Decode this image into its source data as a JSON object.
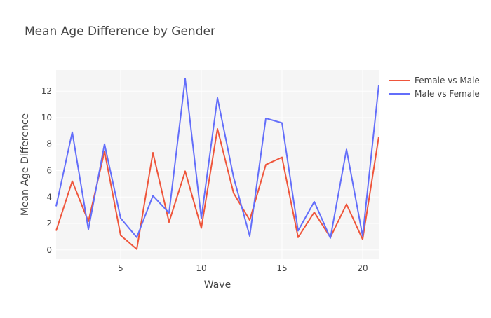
{
  "chart_data": {
    "type": "line",
    "title": "Mean Age Difference by Gender",
    "xlabel": "Wave",
    "ylabel": "Mean Age Difference",
    "xlim": [
      1,
      21
    ],
    "ylim": [
      -0.7,
      13.6
    ],
    "xticks": [
      5,
      10,
      15,
      20
    ],
    "yticks": [
      0,
      2,
      4,
      6,
      8,
      10,
      12
    ],
    "grid": true,
    "legend_position": "top-right",
    "x": [
      1,
      2,
      3,
      4,
      5,
      6,
      7,
      8,
      9,
      10,
      11,
      12,
      13,
      14,
      15,
      16,
      17,
      18,
      19,
      20,
      21
    ],
    "series": [
      {
        "name": "Female vs Male",
        "color": "#EF553B",
        "values": [
          1.45,
          5.2,
          2.15,
          7.45,
          1.1,
          0.05,
          7.35,
          2.1,
          5.95,
          1.65,
          9.15,
          4.3,
          2.25,
          6.45,
          7.0,
          0.95,
          2.85,
          0.95,
          3.45,
          0.8,
          8.55
        ]
      },
      {
        "name": "Male vs Female",
        "color": "#636EFA",
        "values": [
          3.3,
          8.9,
          1.55,
          8.0,
          2.4,
          0.95,
          4.1,
          2.8,
          12.95,
          2.4,
          11.5,
          5.5,
          1.05,
          9.95,
          9.6,
          1.45,
          3.65,
          0.9,
          7.6,
          1.05,
          12.45
        ]
      }
    ]
  }
}
